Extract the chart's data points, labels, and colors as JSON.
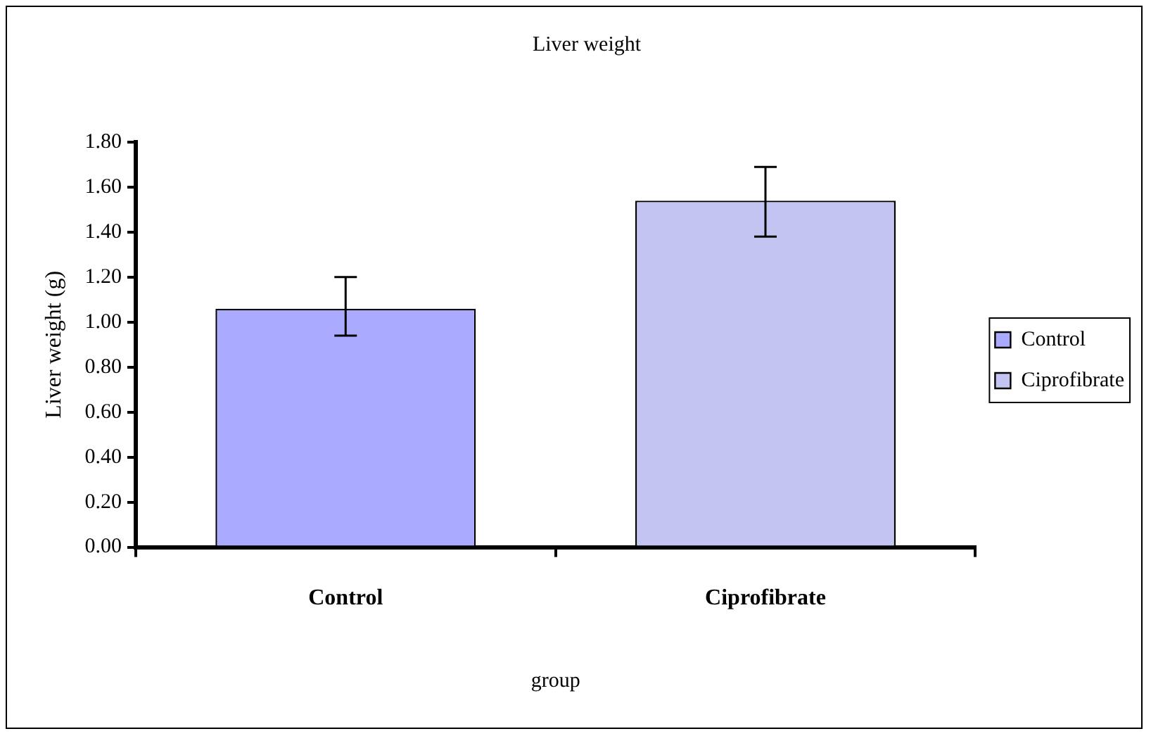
{
  "chart_data": {
    "type": "bar",
    "title": "Liver weight",
    "xlabel": "group",
    "ylabel": "Liver weight (g)",
    "categories": [
      "Control",
      "Ciprofibrate"
    ],
    "series": [
      {
        "name": "Control",
        "color": "#aaaaff",
        "values": [
          1.06,
          null
        ],
        "errors": [
          [
            0.94,
            1.2
          ],
          null
        ]
      },
      {
        "name": "Ciprofibrate",
        "color": "#c4c4f2",
        "values": [
          null,
          1.54
        ],
        "errors": [
          null,
          [
            1.38,
            1.69
          ]
        ]
      }
    ],
    "ylim": [
      0,
      1.8
    ],
    "yticks": [
      {
        "value": 0,
        "label": "0.00"
      },
      {
        "value": 0.2,
        "label": "0.20"
      },
      {
        "value": 0.4,
        "label": "0.40"
      },
      {
        "value": 0.6,
        "label": "0.60"
      },
      {
        "value": 0.8,
        "label": "0.80"
      },
      {
        "value": 1,
        "label": "1.00"
      },
      {
        "value": 1.2,
        "label": "1.20"
      },
      {
        "value": 1.4,
        "label": "1.40"
      },
      {
        "value": 1.6,
        "label": "1.60"
      },
      {
        "value": 1.8,
        "label": "1.80"
      }
    ],
    "grid": false,
    "legend": "right"
  }
}
